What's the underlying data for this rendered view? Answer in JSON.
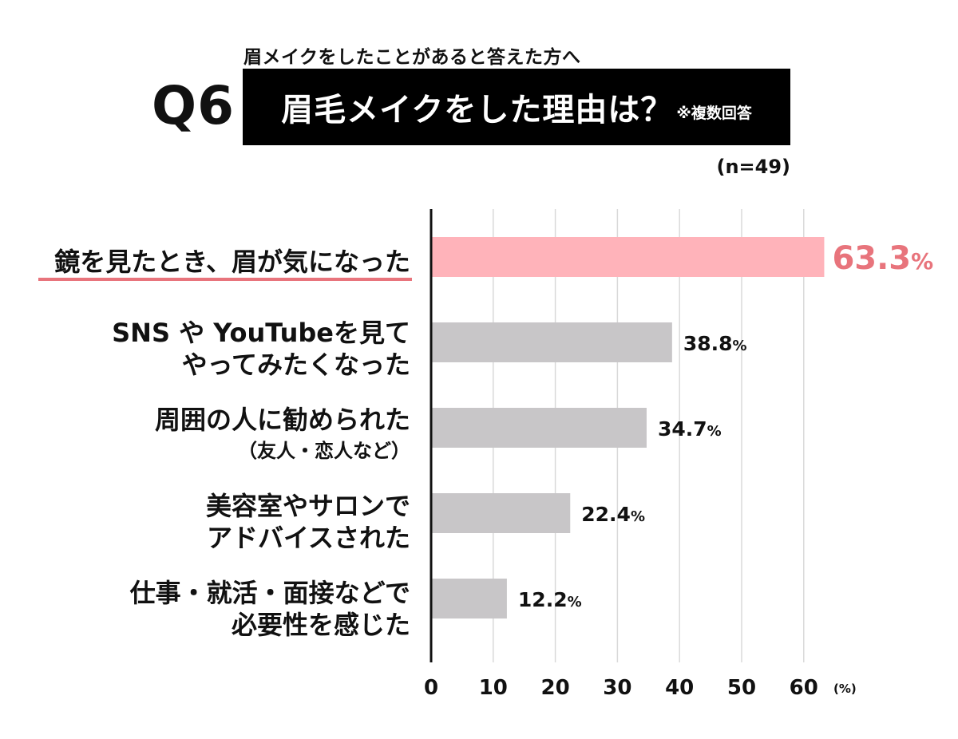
{
  "header": {
    "subtitle": "眉メイクをしたことがあると答えた方へ",
    "question_number": "Q6",
    "title": "眉毛メイクをした理由は？",
    "title_note": "※複数回答",
    "sample_size": "(n=49)"
  },
  "colors": {
    "highlight_bar": "#ffb3ba",
    "highlight_text": "#e8747c",
    "bar": "#c8c6c8",
    "grid": "#d9d9d9",
    "axis": "#111111"
  },
  "chart_data": {
    "type": "bar",
    "orientation": "horizontal",
    "categories": [
      [
        "鏡を見たとき、眉が気になった"
      ],
      [
        "SNS や YouTubeを見て",
        "やってみたくなった"
      ],
      [
        "周囲の人に勧められた",
        "（友人・恋人など）"
      ],
      [
        "美容室やサロンで",
        "アドバイスされた"
      ],
      [
        "仕事・就活・面接などで",
        "必要性を感じた"
      ]
    ],
    "values": [
      63.3,
      38.8,
      34.7,
      22.4,
      12.2
    ],
    "value_labels": [
      "63.3",
      "38.8",
      "34.7",
      "22.4",
      "12.2"
    ],
    "value_suffix": "%",
    "highlight_index": 0,
    "xlim": [
      0,
      63.5
    ],
    "xticks": [
      0,
      10,
      20,
      30,
      40,
      50,
      60
    ],
    "xunit": "(%)",
    "grid": true,
    "legend": "none"
  }
}
